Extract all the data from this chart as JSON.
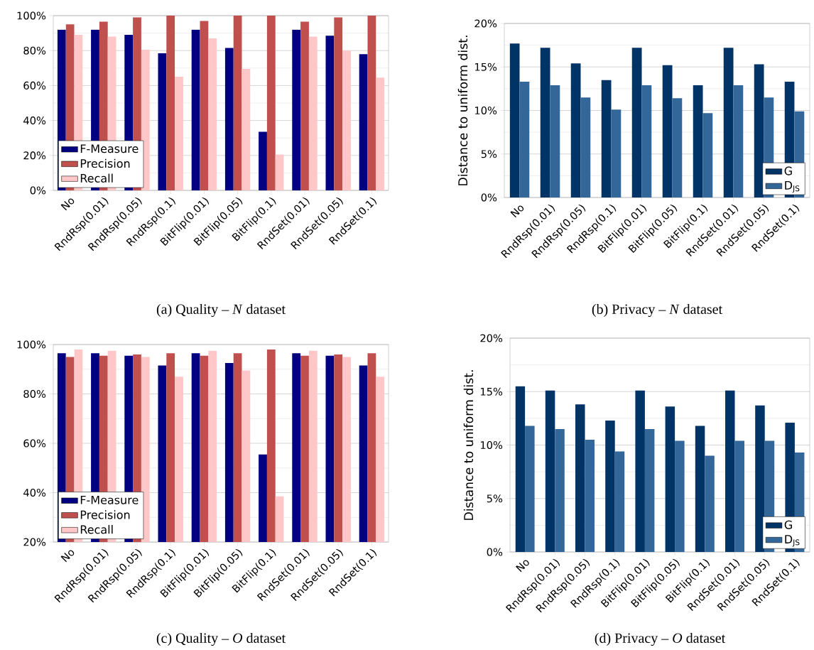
{
  "chart_data": [
    {
      "type": "bar",
      "title": "(a) Quality – *N* dataset",
      "categories": [
        "No",
        "RndRsp(0.01)",
        "RndRsp(0.05)",
        "RndRsp(0.1)",
        "BitFlip(0.01)",
        "BitFlip(0.05)",
        "BitFlip(0.1)",
        "RndSet(0.01)",
        "RndSet(0.05)",
        "RndSet(0.1)"
      ],
      "series": [
        {
          "name": "F-Measure",
          "color": "#000080",
          "values": [
            92,
            92,
            89,
            78.5,
            92,
            81.5,
            33.5,
            92,
            88.5,
            78
          ]
        },
        {
          "name": "Precision",
          "color": "#c0504d",
          "values": [
            95,
            96.5,
            99,
            100,
            97,
            100,
            100,
            96.5,
            99,
            100
          ]
        },
        {
          "name": "Recall",
          "color": "#ffc7c7",
          "values": [
            89,
            88,
            80.5,
            65,
            87,
            69.5,
            20.5,
            88,
            80,
            64.5
          ]
        }
      ],
      "ylim": [
        0,
        100
      ],
      "yticks": [
        {
          "value": 0,
          "label": "0%"
        },
        {
          "value": 20,
          "label": "20%"
        },
        {
          "value": 40,
          "label": "40%"
        },
        {
          "value": 60,
          "label": "60%"
        },
        {
          "value": 80,
          "label": "80%"
        },
        {
          "value": 100,
          "label": "100%"
        }
      ],
      "grid": "y",
      "legend": "bottom left"
    },
    {
      "type": "bar",
      "title": "(b) Privacy – *N* dataset",
      "ylabel": "Distance to uniform dist.",
      "categories": [
        "No",
        "RndRsp(0.01)",
        "RndRsp(0.05)",
        "RndRsp(0.1)",
        "BitFlip(0.01)",
        "BitFlip(0.05)",
        "BitFlip(0.1)",
        "RndSet(0.01)",
        "RndSet(0.05)",
        "RndSet(0.1)"
      ],
      "series": [
        {
          "name": "G",
          "color": "#003366",
          "values": [
            17.7,
            17.2,
            15.4,
            13.5,
            17.2,
            15.2,
            12.9,
            17.2,
            15.3,
            13.3
          ]
        },
        {
          "name": "D$_{JS}$",
          "color": "#336699",
          "values": [
            13.3,
            12.9,
            11.5,
            10.1,
            12.9,
            11.4,
            9.7,
            12.9,
            11.5,
            9.9
          ]
        }
      ],
      "ylim": [
        0,
        20
      ],
      "yticks": [
        {
          "value": 0,
          "label": "0%"
        },
        {
          "value": 5,
          "label": "5%"
        },
        {
          "value": 10,
          "label": "10%"
        },
        {
          "value": 15,
          "label": "15%"
        },
        {
          "value": 20,
          "label": "20%"
        }
      ],
      "grid": "y",
      "legend": "bottom right"
    },
    {
      "type": "bar",
      "title": "(c) Quality – *O* dataset",
      "categories": [
        "No",
        "RndRsp(0.01)",
        "RndRsp(0.05)",
        "RndRsp(0.1)",
        "BitFlip(0.01)",
        "BitFlip(0.05)",
        "BitFlip(0.1)",
        "RndSet(0.01)",
        "RndSet(0.05)",
        "RndSet(0.1)"
      ],
      "series": [
        {
          "name": "F-Measure",
          "color": "#000080",
          "values": [
            96.5,
            96.5,
            95.5,
            91.5,
            96.5,
            92.5,
            55.5,
            96.5,
            95.5,
            91.5
          ]
        },
        {
          "name": "Precision",
          "color": "#c0504d",
          "values": [
            95,
            95.5,
            96,
            96.5,
            95.5,
            96.5,
            98,
            95.5,
            96,
            96.5
          ]
        },
        {
          "name": "Recall",
          "color": "#ffc7c7",
          "values": [
            98,
            97.5,
            95,
            87,
            97.5,
            89.5,
            38.5,
            97.5,
            95,
            87
          ]
        }
      ],
      "ylim": [
        20,
        100
      ],
      "yticks": [
        {
          "value": 20,
          "label": "20%"
        },
        {
          "value": 40,
          "label": "40%"
        },
        {
          "value": 60,
          "label": "60%"
        },
        {
          "value": 80,
          "label": "80%"
        },
        {
          "value": 100,
          "label": "100%"
        }
      ],
      "grid": "y",
      "legend": "bottom left"
    },
    {
      "type": "bar",
      "title": "(d) Privacy – *O* dataset",
      "ylabel": "Distance to uniform dist.",
      "categories": [
        "No",
        "RndRsp(0.01)",
        "RndRsp(0.05)",
        "RndRsp(0.1)",
        "BitFlip(0.01)",
        "BitFlip(0.05)",
        "BitFlip(0.1)",
        "RndSet(0.01)",
        "RndSet(0.05)",
        "RndSet(0.1)"
      ],
      "series": [
        {
          "name": "G",
          "color": "#003366",
          "values": [
            15.5,
            15.1,
            13.8,
            12.3,
            15.1,
            13.6,
            11.8,
            15.1,
            13.7,
            12.1
          ]
        },
        {
          "name": "D$_{JS}$",
          "color": "#336699",
          "values": [
            11.8,
            11.5,
            10.5,
            9.4,
            11.5,
            10.4,
            9.0,
            10.4,
            10.4,
            9.3
          ]
        }
      ],
      "ylim": [
        0,
        20
      ],
      "yticks": [
        {
          "value": 0,
          "label": "0%"
        },
        {
          "value": 5,
          "label": "5%"
        },
        {
          "value": 10,
          "label": "10%"
        },
        {
          "value": 15,
          "label": "15%"
        },
        {
          "value": 20,
          "label": "20%"
        }
      ],
      "grid": "y",
      "legend": "bottom right"
    }
  ]
}
